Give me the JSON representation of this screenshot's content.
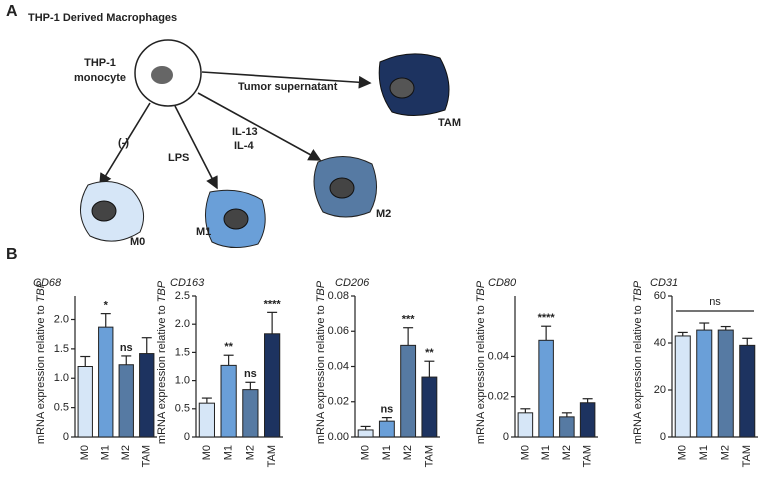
{
  "panels": {
    "a": "A",
    "b": "B"
  },
  "diagram": {
    "title": "THP-1 Derived Macrophages",
    "monocyte": [
      "THP-1",
      "monocyte"
    ],
    "tumor": "Tumor supernatant",
    "tam": "TAM",
    "m0_arrow": "(-)",
    "m1_arrow": "LPS",
    "m2_arrow": [
      "IL-13",
      "IL-4"
    ],
    "m0": "M0",
    "m1": "M1",
    "m2": "M2"
  },
  "chart_data": [
    {
      "type": "bar",
      "title": "CD68",
      "y_label": "mRNA expression relative to",
      "y_label_italic": "TBP",
      "categories": [
        "M0",
        "M1",
        "M2",
        "TAM"
      ],
      "values": [
        1.2,
        1.87,
        1.23,
        1.42
      ],
      "errors": [
        0.17,
        0.23,
        0.15,
        0.27
      ],
      "significance": [
        null,
        "*",
        "ns",
        null
      ],
      "colors": [
        "#d6e6f7",
        "#6a9fd8",
        "#567aa3",
        "#1d3360"
      ],
      "ylim": [
        0,
        2.4
      ],
      "yticks": [
        0,
        0.5,
        {
          "value": 1,
          "label": "1.0"
        },
        1.5,
        {
          "value": 2,
          "label": "2.0"
        }
      ]
    },
    {
      "type": "bar",
      "title": "CD163",
      "y_label": "mRNA expression relative to",
      "y_label_italic": "TBP",
      "categories": [
        "M0",
        "M1",
        "M2",
        "TAM"
      ],
      "values": [
        0.6,
        1.27,
        0.84,
        1.83
      ],
      "errors": [
        0.09,
        0.18,
        0.13,
        0.38
      ],
      "significance": [
        null,
        "**",
        "ns",
        "****"
      ],
      "colors": [
        "#d6e6f7",
        "#6a9fd8",
        "#567aa3",
        "#1d3360"
      ],
      "ylim": [
        0,
        2.5
      ],
      "yticks": [
        0,
        0.5,
        {
          "value": 1,
          "label": "1.0"
        },
        1.5,
        {
          "value": 2,
          "label": "2.0"
        },
        2.5
      ]
    },
    {
      "type": "bar",
      "title": "CD206",
      "y_label": "mRNA expression relative to",
      "y_label_italic": "TBP",
      "categories": [
        "M0",
        "M1",
        "M2",
        "TAM"
      ],
      "values": [
        0.004,
        0.009,
        0.052,
        0.034
      ],
      "errors": [
        0.002,
        0.002,
        0.01,
        0.009
      ],
      "significance": [
        null,
        "ns",
        "***",
        "**"
      ],
      "colors": [
        "#d6e6f7",
        "#6a9fd8",
        "#567aa3",
        "#1d3360"
      ],
      "ylim": [
        0,
        0.08
      ],
      "yticks": [
        {
          "value": 0,
          "label": "0.00"
        },
        0.02,
        0.04,
        0.06,
        0.08
      ]
    },
    {
      "type": "bar",
      "title": "CD80",
      "y_label": "mRNA expression relative to",
      "y_label_italic": "TBP",
      "categories": [
        "M0",
        "M1",
        "M2",
        "TAM"
      ],
      "values": [
        0.012,
        0.048,
        0.01,
        0.017
      ],
      "errors": [
        0.002,
        0.007,
        0.002,
        0.002
      ],
      "significance": [
        null,
        "****",
        null,
        null
      ],
      "colors": [
        "#d6e6f7",
        "#6a9fd8",
        "#567aa3",
        "#1d3360"
      ],
      "ylim": [
        0,
        0.07
      ],
      "yticks": [
        0,
        0.02,
        0.04
      ]
    },
    {
      "type": "bar",
      "title": "CD31",
      "y_label": "mRNA expression relative to",
      "y_label_italic": "TBP",
      "categories": [
        "M0",
        "M1",
        "M2",
        "TAM"
      ],
      "values": [
        43,
        45.5,
        45.5,
        39
      ],
      "errors": [
        1.5,
        3,
        1.5,
        3
      ],
      "group_significance": "ns",
      "colors": [
        "#d6e6f7",
        "#6a9fd8",
        "#567aa3",
        "#1d3360"
      ],
      "ylim": [
        0,
        60
      ],
      "yticks": [
        0,
        20,
        40,
        60
      ]
    }
  ]
}
